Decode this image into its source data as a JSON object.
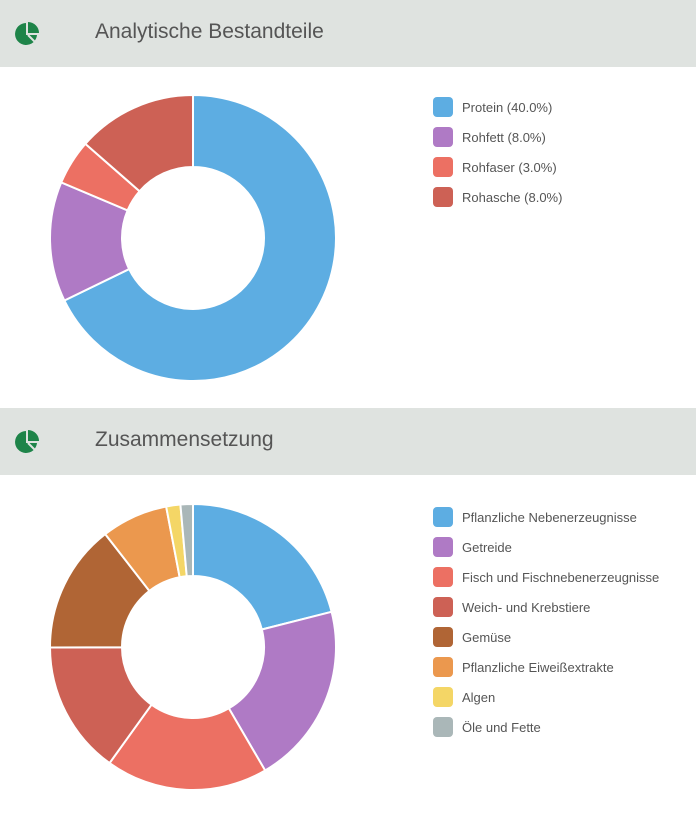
{
  "chart_data": [
    {
      "type": "pie",
      "variant": "donut",
      "title": "Analytische Bestandteile",
      "legend_position": "right",
      "labels": [
        "Protein (40.0%)",
        "Rohfett (8.0%)",
        "Rohfaser (3.0%)",
        "Rohasche (8.0%)"
      ],
      "values": [
        40,
        8,
        3,
        8
      ],
      "colors": [
        "#5dade2",
        "#af7ac5",
        "#ec7063",
        "#cd6155"
      ]
    },
    {
      "type": "pie",
      "variant": "donut",
      "title": "Zusammensetzung",
      "legend_position": "right",
      "labels": [
        "Pflanzliche Nebenerzeugnisse",
        "Getreide",
        "Fisch und Fischnebenerzeugnisse",
        "Weich- und Krebstiere",
        "Gemüse",
        "Pflanzliche Eiweißextrakte",
        "Algen",
        "Öle und Fette"
      ],
      "values": [
        21,
        20.5,
        18.3,
        15,
        14.5,
        7.5,
        1.6,
        1.4
      ],
      "colors": [
        "#5dade2",
        "#af7ac5",
        "#ec7063",
        "#cd6155",
        "#b06535",
        "#eb984e",
        "#f4d666",
        "#aab7b8"
      ]
    }
  ],
  "icon_color": "#1e8449"
}
